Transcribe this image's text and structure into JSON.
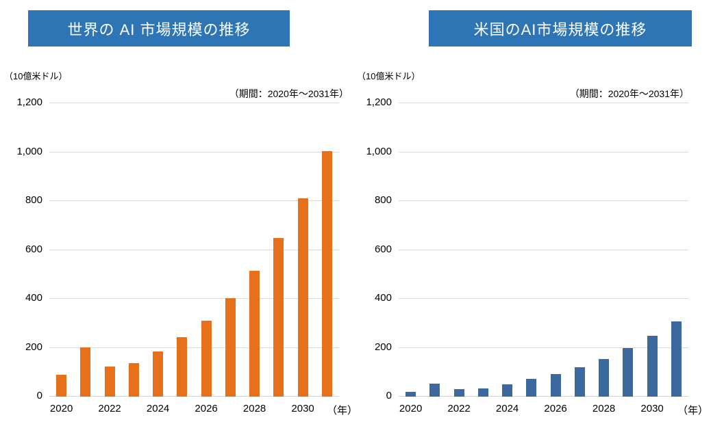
{
  "colors": {
    "header_bg": "#2E75B6",
    "header_text": "#FFFFFF",
    "grid": "#D9D9D9",
    "axis_line": "#D2D2D2",
    "text": "#000000",
    "world_bar": "#E7701A",
    "us_bar": "#3B699D"
  },
  "chart_data": [
    {
      "type": "bar",
      "title": "世界の AI 市場規模の推移",
      "ylabel": "（10億米ドル）",
      "xlabel": "（年）",
      "annotation": "（期間：2020年～2031年）",
      "categories": [
        "2020",
        "2021",
        "2022",
        "2023",
        "2024",
        "2025",
        "2026",
        "2027",
        "2028",
        "2029",
        "2030",
        "2031"
      ],
      "x_tick_labels": [
        "2020",
        "2022",
        "2024",
        "2026",
        "2028",
        "2030"
      ],
      "values": [
        90,
        202,
        124,
        138,
        184,
        244,
        310,
        402,
        514,
        649,
        812,
        1005
      ],
      "ylim": [
        0,
        1200
      ],
      "ytick_step": 200,
      "y_tick_labels": [
        "0",
        "200",
        "400",
        "600",
        "800",
        "1,000",
        "1,200"
      ],
      "grid": true,
      "legend": "none",
      "bar_color": "#E7701A"
    },
    {
      "type": "bar",
      "title": "米国のAI市場規模の推移",
      "ylabel": "（10億米ドル）",
      "xlabel": "（年）",
      "annotation": "（期間：2020年～2031年）",
      "categories": [
        "2020",
        "2021",
        "2022",
        "2023",
        "2024",
        "2025",
        "2026",
        "2027",
        "2028",
        "2029",
        "2030",
        "2031"
      ],
      "x_tick_labels": [
        "2020",
        "2022",
        "2024",
        "2026",
        "2028",
        "2030"
      ],
      "values": [
        21,
        52,
        30,
        35,
        51,
        72,
        93,
        120,
        155,
        199,
        248,
        307
      ],
      "ylim": [
        0,
        1200
      ],
      "ytick_step": 200,
      "y_tick_labels": [
        "0",
        "200",
        "400",
        "600",
        "800",
        "1,000",
        "1,200"
      ],
      "grid": true,
      "legend": "none",
      "bar_color": "#3B699D"
    }
  ]
}
